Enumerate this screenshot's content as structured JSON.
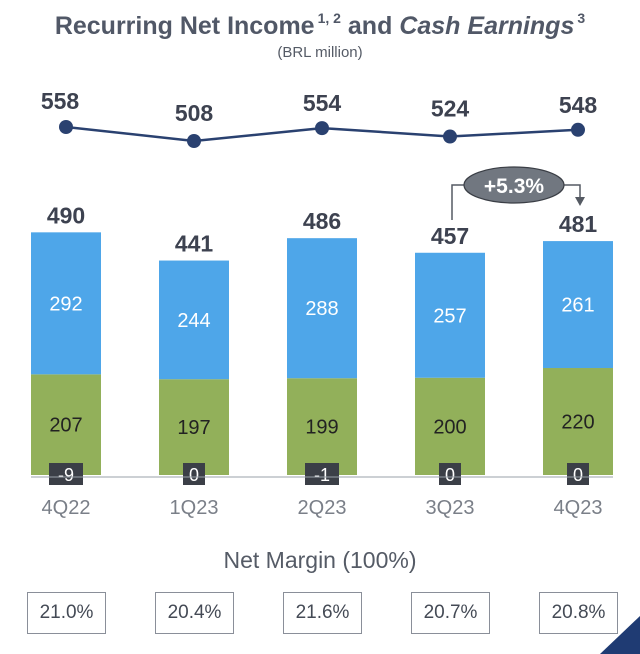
{
  "title": {
    "main": "Recurring Net Income",
    "main_sup": "1, 2",
    "connector": "and",
    "italic": "Cash Earnings",
    "italic_sup": "3"
  },
  "subtitle": "(BRL million)",
  "colors": {
    "top_segment": "#4ea6e9",
    "middle_segment": "#92b05a",
    "line": "#2a4170",
    "badge_fill": "#717780",
    "text_dark": "#3d4250",
    "axis_label": "#7a7f88",
    "corner_accent": "#1f3b73"
  },
  "chart_data": {
    "type": "bar",
    "stacked": true,
    "categories": [
      "4Q22",
      "1Q23",
      "2Q23",
      "3Q23",
      "4Q23"
    ],
    "series": [
      {
        "values": [
          292,
          244,
          288,
          257,
          261
        ]
      },
      {
        "values": [
          207,
          197,
          199,
          200,
          220
        ]
      },
      {
        "values": [
          -9,
          0,
          -1,
          0,
          0
        ]
      }
    ],
    "totals": [
      490,
      441,
      486,
      457,
      481
    ],
    "line": {
      "values": [
        558,
        508,
        554,
        524,
        548
      ]
    },
    "annotation": {
      "text": "+5.3%",
      "from": "3Q23",
      "to": "4Q23"
    }
  },
  "net_margin": {
    "title": "Net Margin (100%)",
    "values": [
      "21.0%",
      "20.4%",
      "21.6%",
      "20.7%",
      "20.8%"
    ]
  }
}
